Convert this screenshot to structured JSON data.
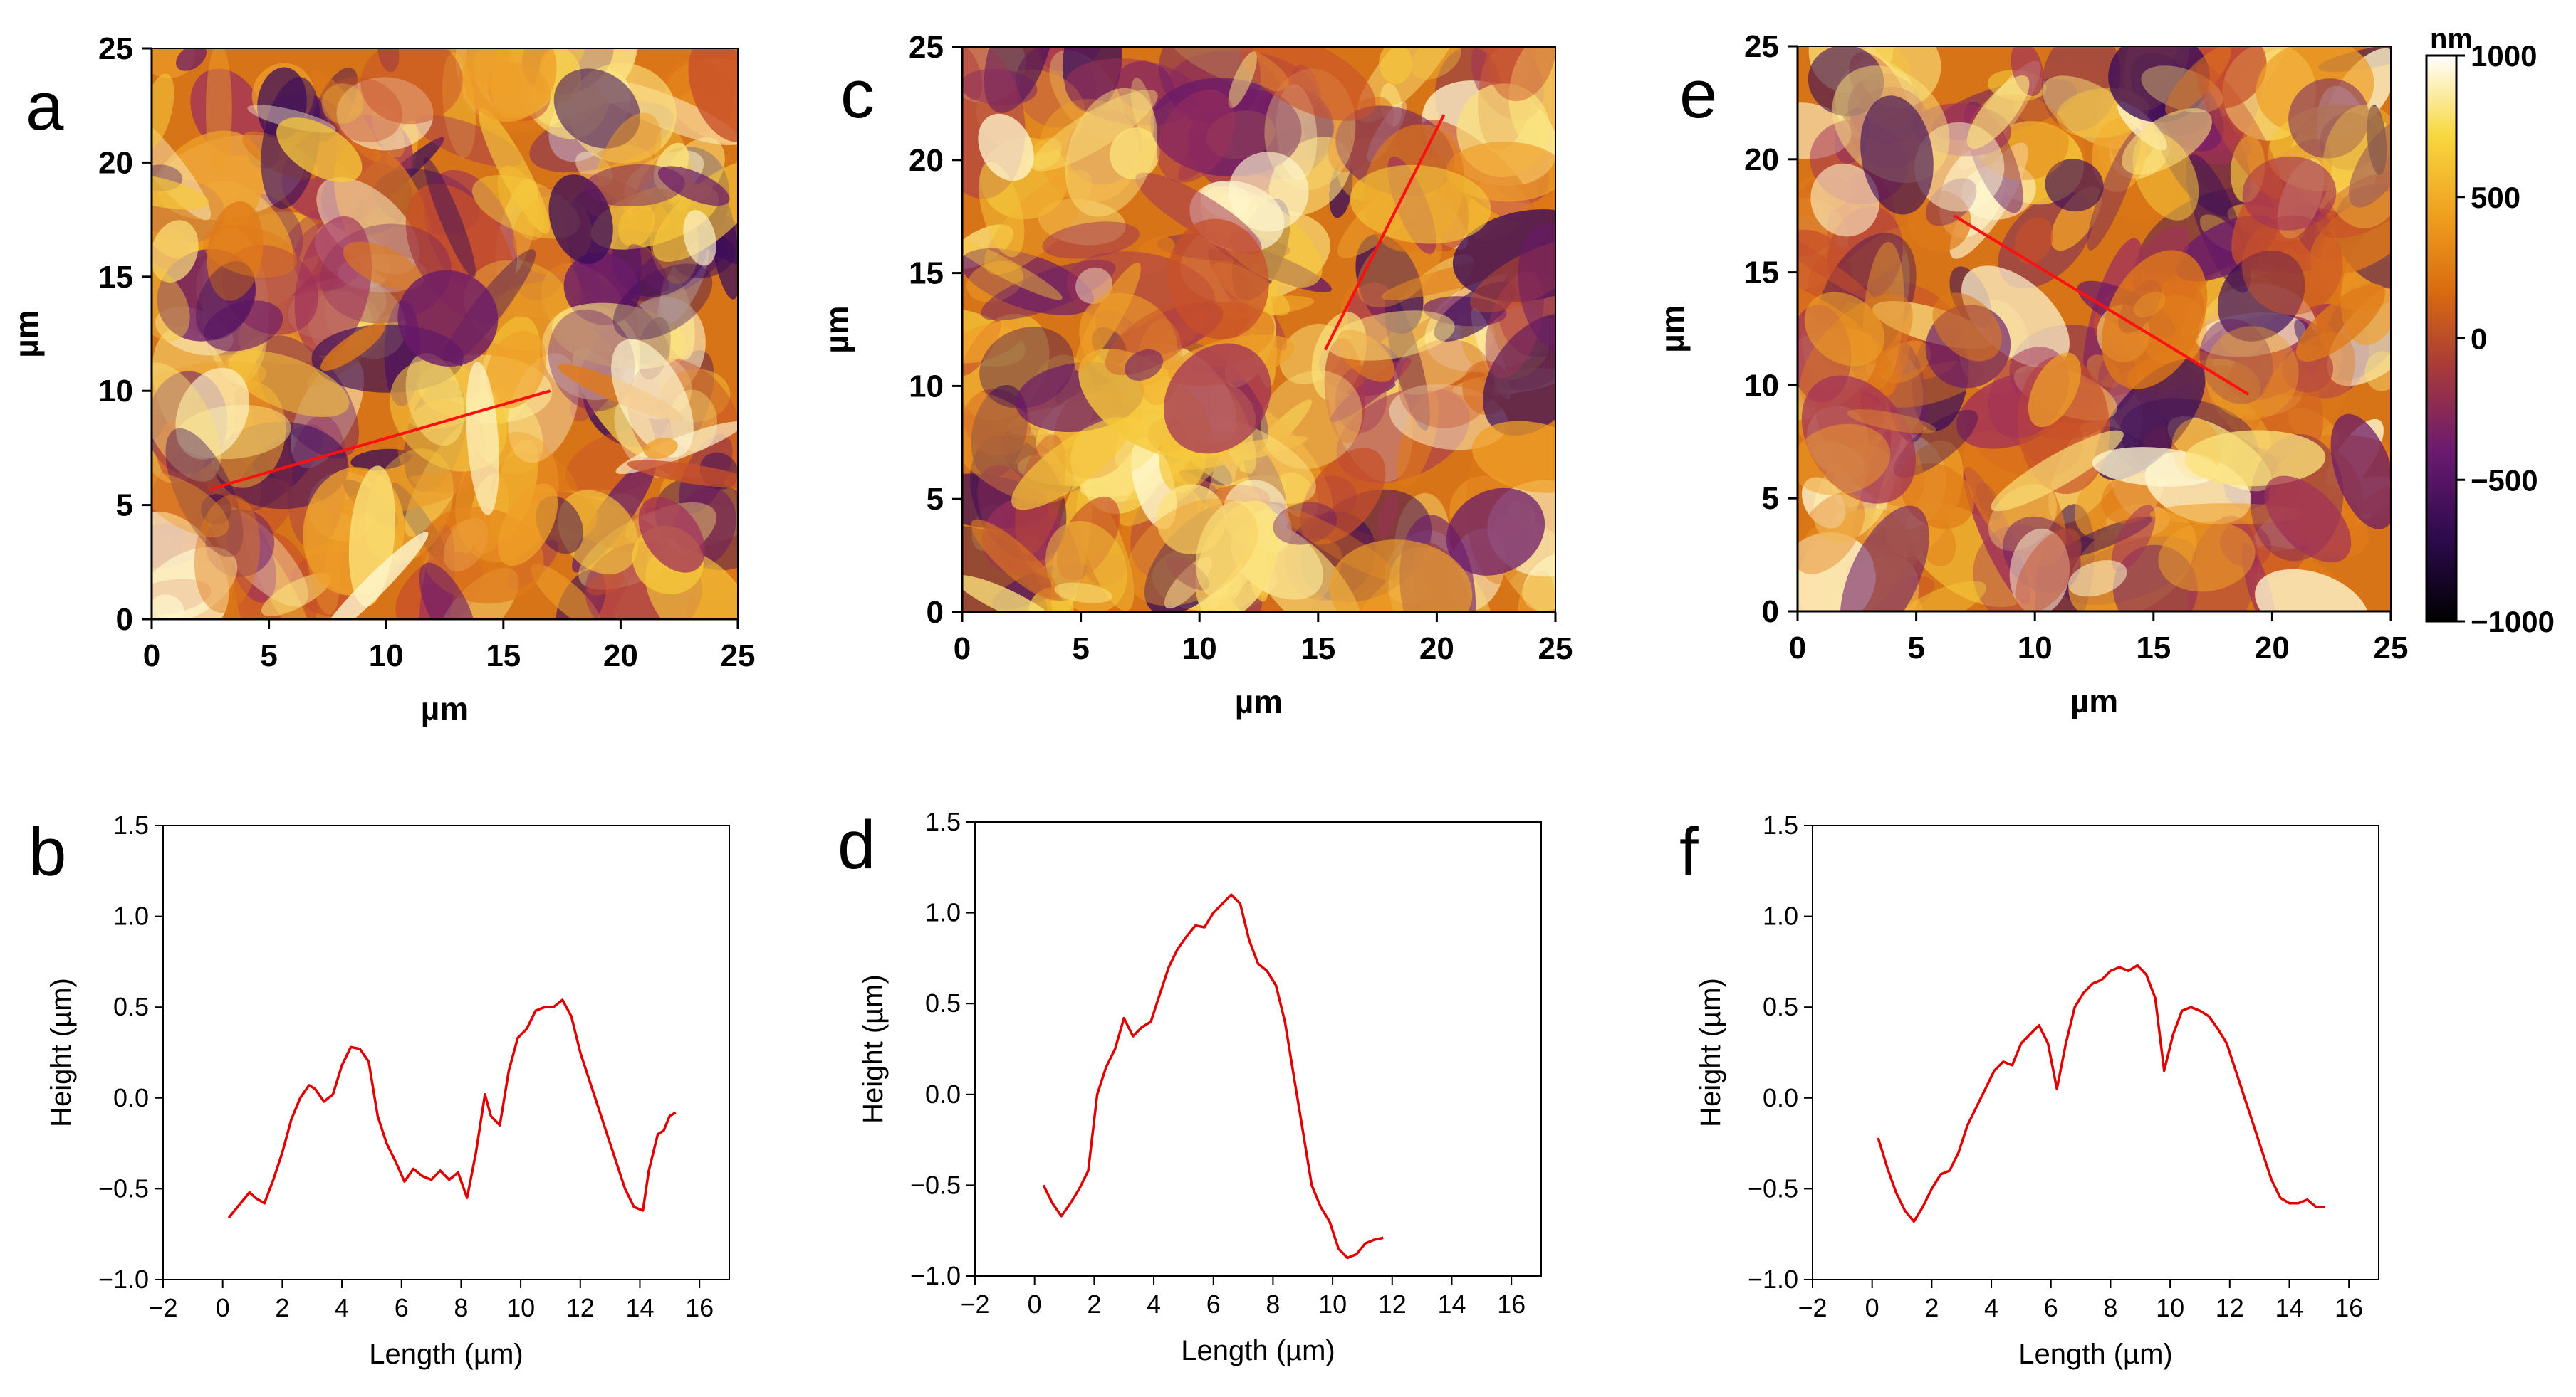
{
  "panel_letters": [
    "a",
    "b",
    "c",
    "d",
    "e",
    "f"
  ],
  "colorbar": {
    "unit": "nm",
    "ticks": [
      1000,
      500,
      0,
      -500,
      -1000
    ],
    "range": [
      -1000,
      1000
    ],
    "colormap": [
      "#000000",
      "#2a0a4a",
      "#6a1a70",
      "#a83a3a",
      "#d86a10",
      "#f0a020",
      "#f8d840",
      "#ffffff"
    ]
  },
  "chart_data": [
    {
      "panel": "a",
      "type": "heatmap",
      "xlabel": "µm",
      "ylabel": "µm",
      "xlim": [
        0,
        25
      ],
      "ylim": [
        0,
        25
      ],
      "xticks": [
        0,
        5,
        10,
        15,
        20,
        25
      ],
      "yticks": [
        0,
        5,
        10,
        15,
        20,
        25
      ],
      "profile_line": {
        "start": [
          2.5,
          5.7
        ],
        "end": [
          17,
          10
        ]
      }
    },
    {
      "panel": "b",
      "type": "line",
      "xlabel": "Length (µm)",
      "ylabel": "Height (µm)",
      "xlim": [
        -2,
        17
      ],
      "ylim": [
        -1.0,
        1.5
      ],
      "xticks": [
        -2,
        0,
        2,
        4,
        6,
        8,
        10,
        12,
        14,
        16
      ],
      "yticks": [
        "1.5",
        "1.0",
        "0.5",
        "0.0",
        "-0.5",
        "-1.0"
      ],
      "series": [
        {
          "color": "#e00000",
          "x": [
            0.2,
            0.5,
            0.9,
            1.1,
            1.4,
            1.7,
            2.0,
            2.3,
            2.6,
            2.9,
            3.1,
            3.4,
            3.7,
            4.0,
            4.3,
            4.6,
            4.9,
            5.2,
            5.5,
            5.8,
            6.1,
            6.4,
            6.7,
            7.0,
            7.3,
            7.6,
            7.9,
            8.2,
            8.5,
            8.8,
            9.0,
            9.3,
            9.6,
            9.9,
            10.2,
            10.5,
            10.8,
            11.1,
            11.4,
            11.7,
            12.0,
            12.3,
            12.6,
            12.9,
            13.2,
            13.5,
            13.8,
            14.1,
            14.3,
            14.6,
            14.8,
            15.0,
            15.2
          ],
          "y": [
            -0.66,
            -0.6,
            -0.52,
            -0.55,
            -0.58,
            -0.45,
            -0.3,
            -0.12,
            0.0,
            0.07,
            0.05,
            -0.02,
            0.02,
            0.18,
            0.28,
            0.27,
            0.2,
            -0.1,
            -0.25,
            -0.35,
            -0.46,
            -0.39,
            -0.43,
            -0.45,
            -0.4,
            -0.45,
            -0.41,
            -0.55,
            -0.3,
            0.02,
            -0.1,
            -0.15,
            0.15,
            0.33,
            0.38,
            0.48,
            0.5,
            0.5,
            0.54,
            0.45,
            0.25,
            0.1,
            -0.05,
            -0.2,
            -0.35,
            -0.5,
            -0.6,
            -0.62,
            -0.4,
            -0.2,
            -0.18,
            -0.1,
            -0.08
          ]
        }
      ]
    },
    {
      "panel": "c",
      "type": "heatmap",
      "xlabel": "µm",
      "ylabel": "µm",
      "xlim": [
        0,
        25
      ],
      "ylim": [
        0,
        25
      ],
      "xticks": [
        0,
        5,
        10,
        15,
        20,
        25
      ],
      "yticks": [
        0,
        5,
        10,
        15,
        20,
        25
      ],
      "profile_line": {
        "start": [
          15.3,
          11.6
        ],
        "end": [
          20.3,
          22
        ]
      }
    },
    {
      "panel": "d",
      "type": "line",
      "xlabel": "Length (µm)",
      "ylabel": "Height (µm)",
      "xlim": [
        -2,
        17
      ],
      "ylim": [
        -1.0,
        1.5
      ],
      "xticks": [
        -2,
        0,
        2,
        4,
        6,
        8,
        10,
        12,
        14,
        16
      ],
      "yticks": [
        "1.5",
        "1.0",
        "0.5",
        "0.0",
        "-0.5",
        "-1.0"
      ],
      "series": [
        {
          "color": "#e00000",
          "x": [
            0.3,
            0.6,
            0.9,
            1.2,
            1.5,
            1.8,
            2.1,
            2.4,
            2.7,
            3.0,
            3.3,
            3.6,
            3.9,
            4.2,
            4.5,
            4.8,
            5.1,
            5.4,
            5.7,
            6.0,
            6.3,
            6.6,
            6.9,
            7.2,
            7.5,
            7.8,
            8.1,
            8.4,
            8.7,
            9.0,
            9.3,
            9.6,
            9.9,
            10.2,
            10.5,
            10.8,
            11.1,
            11.4,
            11.7
          ],
          "y": [
            -0.5,
            -0.6,
            -0.67,
            -0.6,
            -0.52,
            -0.42,
            0.0,
            0.15,
            0.25,
            0.42,
            0.32,
            0.37,
            0.4,
            0.55,
            0.7,
            0.8,
            0.87,
            0.93,
            0.92,
            1.0,
            1.05,
            1.1,
            1.05,
            0.85,
            0.72,
            0.68,
            0.6,
            0.4,
            0.1,
            -0.2,
            -0.5,
            -0.62,
            -0.7,
            -0.85,
            -0.9,
            -0.88,
            -0.82,
            -0.8,
            -0.79
          ]
        }
      ]
    },
    {
      "panel": "e",
      "type": "heatmap",
      "xlabel": "µm",
      "ylabel": "µm",
      "xlim": [
        0,
        25
      ],
      "ylim": [
        0,
        25
      ],
      "xticks": [
        0,
        5,
        10,
        15,
        20,
        25
      ],
      "yticks": [
        0,
        5,
        10,
        15,
        20,
        25
      ],
      "profile_line": {
        "start": [
          6.6,
          17.5
        ],
        "end": [
          19,
          9.6
        ]
      }
    },
    {
      "panel": "f",
      "type": "line",
      "xlabel": "Length (µm)",
      "ylabel": "Height (µm)",
      "xlim": [
        -2,
        17
      ],
      "ylim": [
        -1.0,
        1.5
      ],
      "xticks": [
        -2,
        0,
        2,
        4,
        6,
        8,
        10,
        12,
        14,
        16
      ],
      "yticks": [
        "1.5",
        "1.0",
        "0.5",
        "0.0",
        "-0.5",
        "-1.0"
      ],
      "series": [
        {
          "color": "#e00000",
          "x": [
            0.2,
            0.5,
            0.8,
            1.1,
            1.4,
            1.7,
            2.0,
            2.3,
            2.6,
            2.9,
            3.2,
            3.5,
            3.8,
            4.1,
            4.4,
            4.7,
            5.0,
            5.3,
            5.6,
            5.9,
            6.2,
            6.5,
            6.8,
            7.1,
            7.4,
            7.7,
            8.0,
            8.3,
            8.6,
            8.9,
            9.2,
            9.5,
            9.8,
            10.1,
            10.4,
            10.7,
            11.0,
            11.3,
            11.6,
            11.9,
            12.2,
            12.5,
            12.8,
            13.1,
            13.4,
            13.7,
            14.0,
            14.3,
            14.6,
            14.9,
            15.2
          ],
          "y": [
            -0.22,
            -0.38,
            -0.52,
            -0.62,
            -0.68,
            -0.6,
            -0.5,
            -0.42,
            -0.4,
            -0.3,
            -0.15,
            -0.05,
            0.05,
            0.15,
            0.2,
            0.18,
            0.3,
            0.35,
            0.4,
            0.3,
            0.05,
            0.3,
            0.5,
            0.58,
            0.63,
            0.65,
            0.7,
            0.72,
            0.7,
            0.73,
            0.68,
            0.55,
            0.15,
            0.35,
            0.48,
            0.5,
            0.48,
            0.45,
            0.38,
            0.3,
            0.15,
            0.0,
            -0.15,
            -0.3,
            -0.45,
            -0.55,
            -0.58,
            -0.58,
            -0.56,
            -0.6,
            -0.6
          ]
        }
      ]
    }
  ]
}
